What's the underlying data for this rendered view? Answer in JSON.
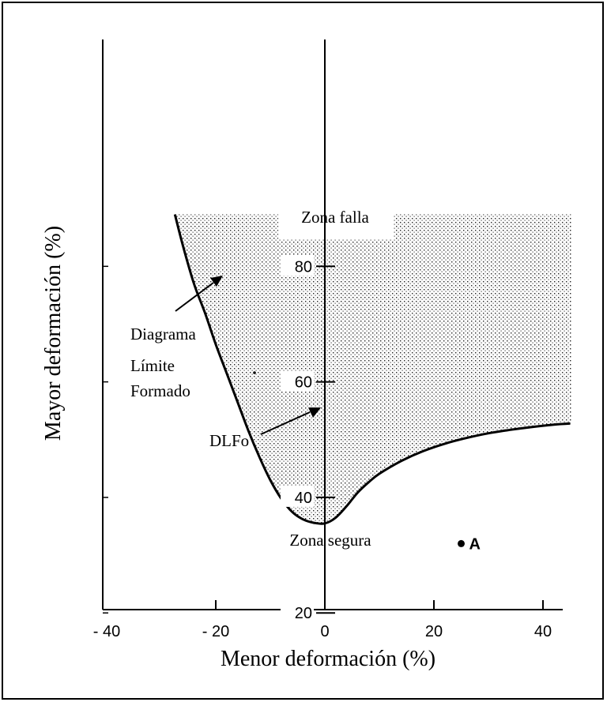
{
  "chart_data": {
    "type": "line",
    "title": "",
    "xlabel": "Menor deformación (%)",
    "ylabel": "Mayor deformación (%)",
    "xlim": [
      -40,
      45
    ],
    "ylim": [
      0,
      95
    ],
    "x_ticks": [
      {
        "value": -40,
        "label": "- 40"
      },
      {
        "value": -20,
        "label": "- 20"
      },
      {
        "value": 0,
        "label": "0"
      },
      {
        "value": 20,
        "label": "20"
      },
      {
        "value": 40,
        "label": "40"
      }
    ],
    "y_ticks": [
      {
        "value": 20,
        "label": "20"
      },
      {
        "value": 40,
        "label": "40"
      },
      {
        "value": 60,
        "label": "60"
      },
      {
        "value": 80,
        "label": "80"
      }
    ],
    "series": [
      {
        "name": "Diagrama Límite Formado",
        "x": [
          -27.5,
          -26,
          -24,
          -22,
          -20,
          -18,
          -16,
          -14,
          -12,
          -10,
          -8,
          -6,
          -4,
          -2,
          0,
          2,
          4,
          6,
          8,
          10,
          14,
          18,
          22,
          26,
          30,
          34,
          38,
          42,
          45
        ],
        "y": [
          89,
          83.5,
          77,
          72,
          66.5,
          61.5,
          56.5,
          51.5,
          47,
          43,
          39.8,
          37.5,
          36.2,
          35.6,
          35.5,
          36.5,
          38.5,
          40.8,
          42.6,
          44.1,
          46.3,
          48,
          49.3,
          50.3,
          51.1,
          51.7,
          52.2,
          52.6,
          52.8
        ]
      }
    ],
    "points": [
      {
        "name": "A",
        "x": 25,
        "y": 32
      }
    ],
    "annotations": {
      "failure_zone": "Zona falla",
      "safe_zone": "Zona segura",
      "curve_label_1": "Diagrama",
      "curve_label_2": "Límite",
      "curve_label_3": "Formado",
      "vertex_label": "DLFo"
    },
    "grid": false,
    "legend": "none"
  }
}
